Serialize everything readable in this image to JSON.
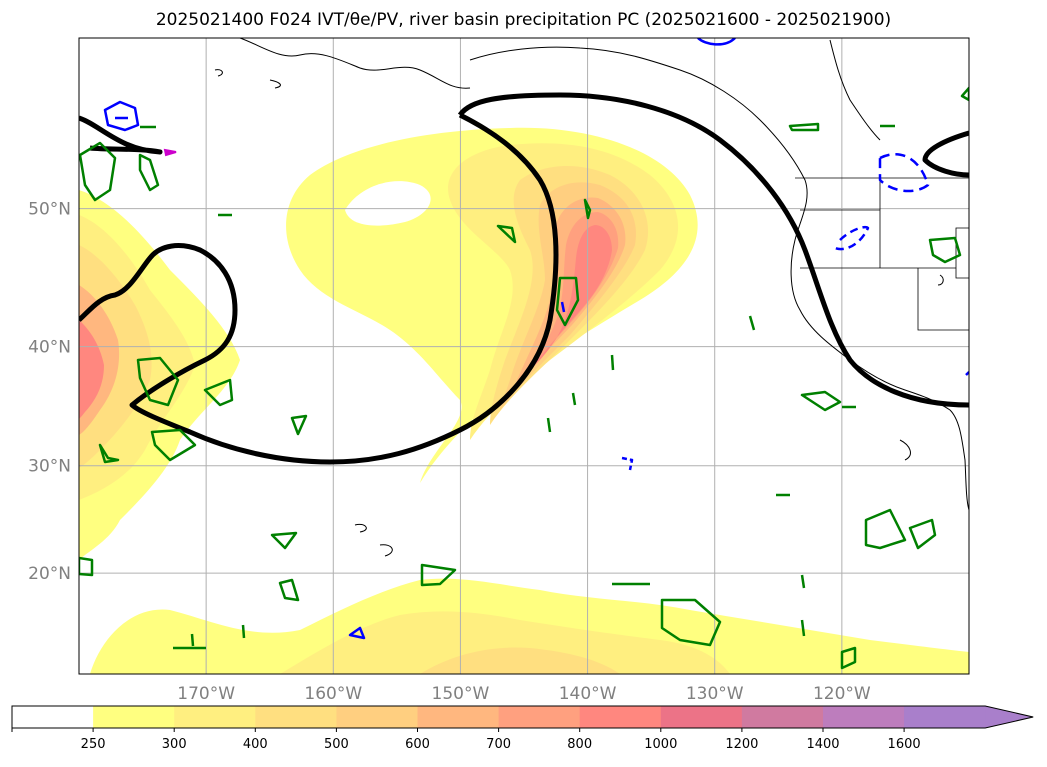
{
  "title": "2025021400 F024 IVT/θe/PV, river basin precipitation PC (2025021600 - 2025021900)",
  "chart_data": {
    "type": "map-contour",
    "lon_range": [
      -180,
      -110
    ],
    "lat_range": [
      10,
      60
    ],
    "lon_ticks": [
      {
        "value": -170,
        "label": "170°W"
      },
      {
        "value": -160,
        "label": "160°W"
      },
      {
        "value": -150,
        "label": "150°W"
      },
      {
        "value": -140,
        "label": "140°W"
      },
      {
        "value": -130,
        "label": "130°W"
      },
      {
        "value": -120,
        "label": "120°W"
      }
    ],
    "lat_ticks": [
      {
        "value": 20,
        "label": "20°N"
      },
      {
        "value": 30,
        "label": "30°N"
      },
      {
        "value": 40,
        "label": "40°N"
      },
      {
        "value": 50,
        "label": "50°N"
      }
    ],
    "grid": true,
    "colorbar": {
      "levels": [
        "250",
        "300",
        "400",
        "500",
        "600",
        "700",
        "800",
        "1000",
        "1200",
        "1400",
        "1600"
      ],
      "colors": [
        "#ffffff",
        "#ffff80",
        "#ffef80",
        "#ffdf80",
        "#ffcf80",
        "#ffb77f",
        "#ffa07f",
        "#ff877f",
        "#ec7387",
        "#d07aa0",
        "#bd7dbd",
        "#a97fcb"
      ],
      "extend": "max"
    },
    "ivt_shading": "IVT",
    "contours": {
      "black": "θe",
      "green": "PV",
      "blue": "PV"
    }
  }
}
